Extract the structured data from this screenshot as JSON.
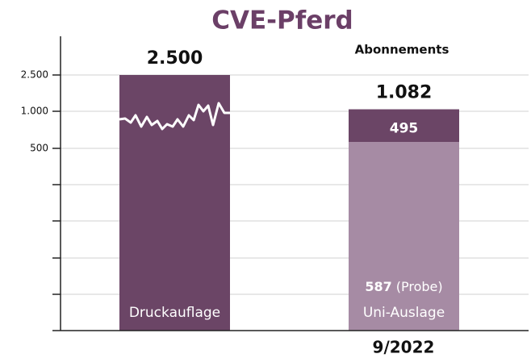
{
  "chart_data": {
    "type": "bar",
    "title": "CVE-Pferd",
    "subtitle": "Abonnements",
    "xlabel": "9/2022",
    "ylim": [
      0,
      2500
    ],
    "yticks": [
      500,
      {
        "value": 1000,
        "label": "1.000"
      },
      {
        "value": 2500,
        "label": "2.500"
      }
    ],
    "grid": true,
    "bars": [
      {
        "category": "Druckauflage",
        "total": 2500,
        "total_label": "2.500",
        "segments": [
          {
            "value": 2500,
            "color": "#6b4566"
          }
        ]
      },
      {
        "category": "Uni-Auslage",
        "total": 1082,
        "total_label": "1.082",
        "segments": [
          {
            "value": 587,
            "label": "(Probe)",
            "color": "#a68ba4"
          },
          {
            "value": 495,
            "color": "#6b4566"
          }
        ]
      }
    ]
  }
}
